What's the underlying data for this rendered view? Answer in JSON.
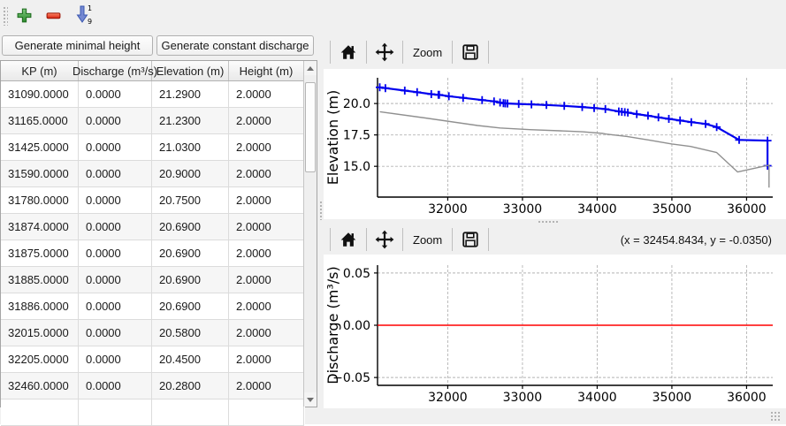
{
  "main_toolbar": {
    "buttons": [
      {
        "id": "add-row",
        "icon": "plus-icon"
      },
      {
        "id": "remove-row",
        "icon": "minus-icon"
      },
      {
        "id": "sort-ascending",
        "icon": "sort-ascending-icon"
      }
    ]
  },
  "action_buttons": {
    "generate_minimal_height": "Generate minimal height",
    "generate_constant_discharge": "Generate constant discharge"
  },
  "table": {
    "columns": [
      "KP (m)",
      "Discharge (m³/s)",
      "Elevation (m)",
      "Height (m)"
    ],
    "rows": [
      [
        "31090.0000",
        "0.0000",
        "21.2900",
        "2.0000"
      ],
      [
        "31165.0000",
        "0.0000",
        "21.2300",
        "2.0000"
      ],
      [
        "31425.0000",
        "0.0000",
        "21.0300",
        "2.0000"
      ],
      [
        "31590.0000",
        "0.0000",
        "20.9000",
        "2.0000"
      ],
      [
        "31780.0000",
        "0.0000",
        "20.7500",
        "2.0000"
      ],
      [
        "31874.0000",
        "0.0000",
        "20.6900",
        "2.0000"
      ],
      [
        "31875.0000",
        "0.0000",
        "20.6900",
        "2.0000"
      ],
      [
        "31885.0000",
        "0.0000",
        "20.6900",
        "2.0000"
      ],
      [
        "31886.0000",
        "0.0000",
        "20.6900",
        "2.0000"
      ],
      [
        "32015.0000",
        "0.0000",
        "20.5800",
        "2.0000"
      ],
      [
        "32205.0000",
        "0.0000",
        "20.4500",
        "2.0000"
      ],
      [
        "32460.0000",
        "0.0000",
        "20.2800",
        "2.0000"
      ],
      [
        "",
        "",
        "",
        ""
      ]
    ]
  },
  "nav_toolbar": {
    "zoom_label": "Zoom",
    "coords": "(x = 32454.8434,  y = -0.0350)"
  },
  "colors": {
    "water_line": "#0000ee",
    "bed_line": "#909090",
    "discharge_line": "#ff0000",
    "grid": "#b3b3b3",
    "plus_green": "#44a044",
    "minus_red": "#e8402a",
    "sort_blue": "#6b82cf"
  },
  "chart_data": [
    {
      "type": "line",
      "title": "",
      "xlabel": "",
      "ylabel": "Elevation (m)",
      "xlim": [
        31060,
        36350
      ],
      "ylim": [
        12.55,
        22.05
      ],
      "xticks": [
        32000,
        33000,
        34000,
        35000,
        36000
      ],
      "xtick_labels": [
        "32000",
        "33000",
        "34000",
        "35000",
        "36000"
      ],
      "yticks": [
        15.0,
        17.5,
        20.0
      ],
      "ytick_labels": [
        "15.0",
        "17.5",
        "20.0"
      ],
      "grid": true,
      "legend": "none",
      "series": [
        {
          "name": "minimal-height-elevation",
          "color": "#0000ee",
          "marker": "+",
          "line_width": 2.2,
          "points": [
            [
              31090,
              21.29
            ],
            [
              31165,
              21.23
            ],
            [
              31425,
              21.03
            ],
            [
              31590,
              20.9
            ],
            [
              31780,
              20.75
            ],
            [
              31874,
              20.69
            ],
            [
              31875,
              20.69
            ],
            [
              31885,
              20.69
            ],
            [
              31886,
              20.69
            ],
            [
              32015,
              20.58
            ],
            [
              32205,
              20.45
            ],
            [
              32460,
              20.28
            ],
            [
              32620,
              20.17
            ],
            [
              32700,
              20.08
            ],
            [
              32745,
              20.03
            ],
            [
              32770,
              20.01
            ],
            [
              32800,
              20.0
            ],
            [
              32950,
              19.97
            ],
            [
              33120,
              19.93
            ],
            [
              33320,
              19.88
            ],
            [
              33560,
              19.81
            ],
            [
              33800,
              19.72
            ],
            [
              33960,
              19.64
            ],
            [
              34110,
              19.56
            ],
            [
              34290,
              19.37
            ],
            [
              34330,
              19.34
            ],
            [
              34370,
              19.31
            ],
            [
              34410,
              19.28
            ],
            [
              34530,
              19.16
            ],
            [
              34680,
              19.03
            ],
            [
              34820,
              18.9
            ],
            [
              34960,
              18.78
            ],
            [
              35110,
              18.65
            ],
            [
              35260,
              18.52
            ],
            [
              35450,
              18.38
            ],
            [
              35600,
              18.12
            ],
            [
              35900,
              17.1
            ],
            [
              36280,
              17.05
            ],
            [
              36280,
              15.05
            ]
          ]
        },
        {
          "name": "bed-elevation",
          "color": "#909090",
          "marker": null,
          "line_width": 1.4,
          "points": [
            [
              31090,
              19.35
            ],
            [
              31700,
              18.85
            ],
            [
              32400,
              18.25
            ],
            [
              32700,
              18.05
            ],
            [
              33100,
              17.92
            ],
            [
              33500,
              17.83
            ],
            [
              33800,
              17.75
            ],
            [
              34080,
              17.62
            ],
            [
              34120,
              17.57
            ],
            [
              34400,
              17.38
            ],
            [
              34700,
              17.08
            ],
            [
              35000,
              16.78
            ],
            [
              35250,
              16.58
            ],
            [
              35600,
              16.1
            ],
            [
              35880,
              14.55
            ],
            [
              36300,
              15.1
            ],
            [
              36300,
              13.3
            ]
          ]
        }
      ]
    },
    {
      "type": "line",
      "title": "",
      "xlabel": "",
      "ylabel": "Discharge (m³/s)",
      "xlim": [
        31060,
        36350
      ],
      "ylim": [
        -0.0575,
        0.0575
      ],
      "xticks": [
        32000,
        33000,
        34000,
        35000,
        36000
      ],
      "xtick_labels": [
        "32000",
        "33000",
        "34000",
        "35000",
        "36000"
      ],
      "yticks": [
        -0.05,
        0.0,
        0.05
      ],
      "ytick_labels": [
        "−0.05",
        "0.00",
        "0.05"
      ],
      "grid": true,
      "legend": "none",
      "series": [
        {
          "name": "constant-discharge",
          "color": "#ff0000",
          "marker": null,
          "line_width": 1.6,
          "points": [
            [
              31060,
              0.0
            ],
            [
              36350,
              0.0
            ]
          ]
        }
      ]
    }
  ]
}
